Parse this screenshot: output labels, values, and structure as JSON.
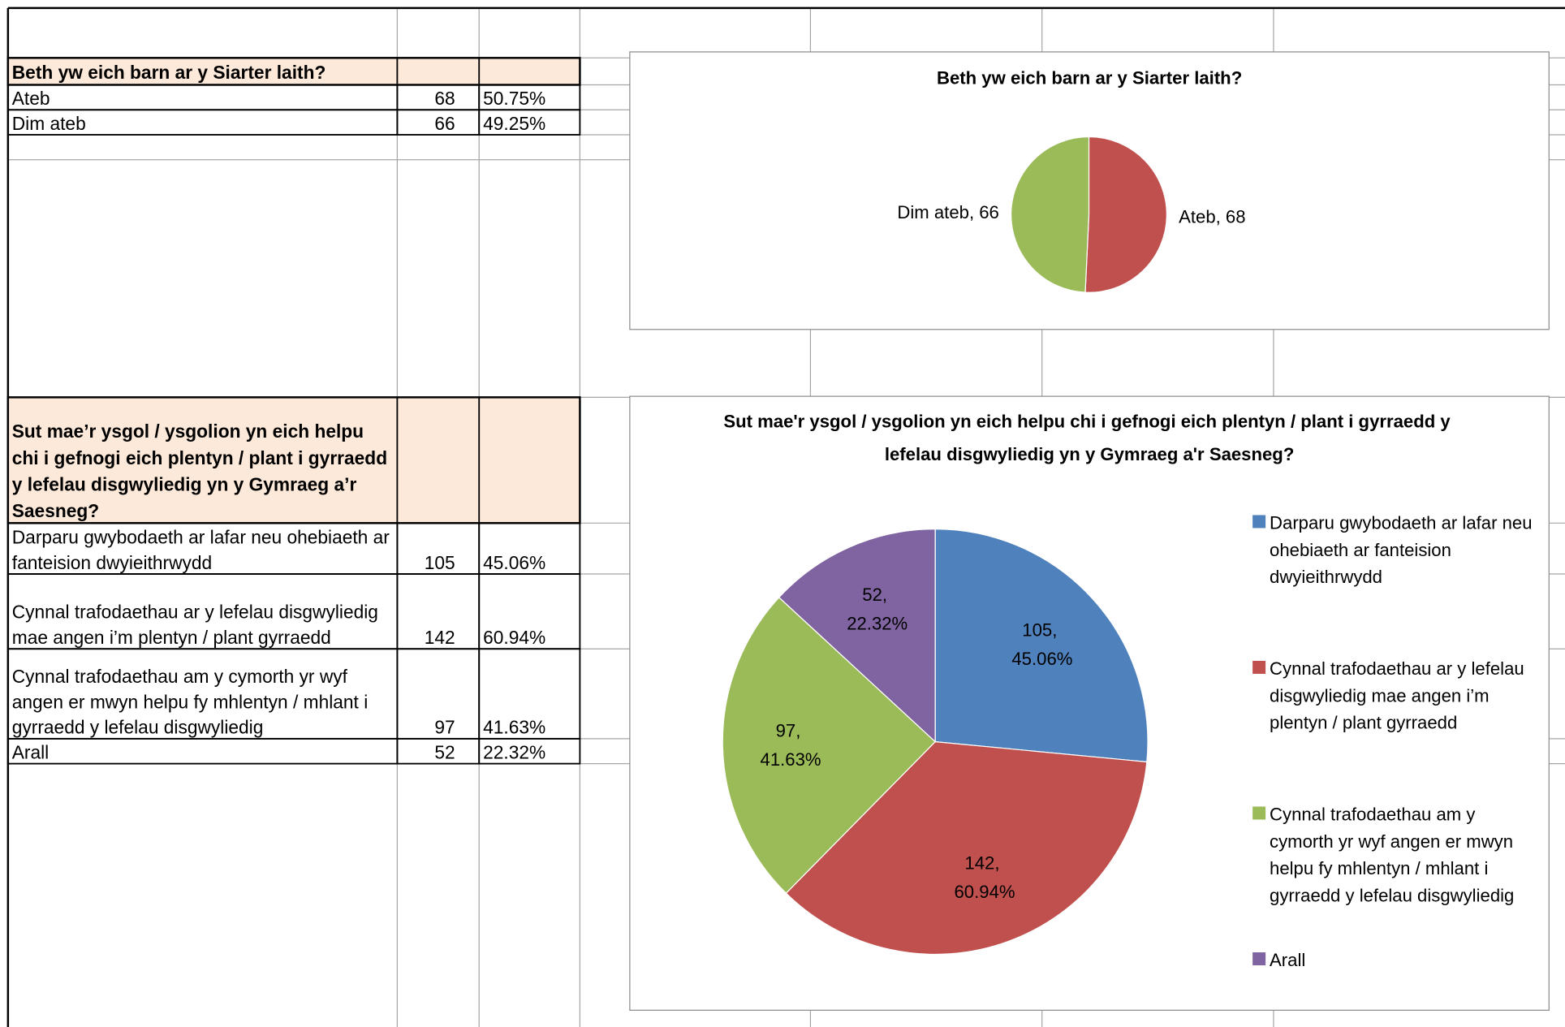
{
  "table": {
    "sections": [
      {
        "header": "Beth yw eich barn ar y Siarter laith?",
        "rows": [
          [
            "Ateb",
            68,
            "50.75%"
          ],
          [
            "Dim ateb",
            66,
            "49.25%"
          ]
        ]
      },
      {
        "header": "Sut mae’r ysgol / ysgolion yn eich helpu chi i gefnogi eich plentyn / plant i gyrraedd y lefelau disgwyliedig yn y Gymraeg a’r Saesneg?",
        "rows": [
          [
            "Darparu gwybodaeth ar lafar neu ohebiaeth ar fanteision dwyieithrwydd",
            105,
            "45.06%"
          ],
          [
            "Cynnal trafodaethau ar y lefelau disgwyliedig mae angen i’m plentyn / plant gyrraedd",
            142,
            "60.94%"
          ],
          [
            "Cynnal trafodaethau am y cymorth yr wyf angen er mwyn helpu fy mhlentyn / mhlant i gyrraedd y lefelau disgwyliedig",
            97,
            "41.63%"
          ],
          [
            "Arall",
            52,
            "22.32%"
          ]
        ]
      }
    ]
  },
  "chart_data": [
    {
      "type": "pie",
      "title": "Beth yw eich barn ar y Siarter laith?",
      "values": [
        68,
        66
      ],
      "value_labels": [
        "Ateb, 68",
        "Dim ateb, 66"
      ],
      "colors": [
        "#c0504d",
        "#9bbb59"
      ],
      "legend": false
    },
    {
      "type": "pie",
      "title": "Sut mae'r ysgol / ysgolion yn eich helpu chi i gefnogi eich plentyn / plant i gyrraedd y lefelau disgwyliedig yn y Gymraeg a'r Saesneg?",
      "categories": [
        "Darparu gwybodaeth ar lafar neu ohebiaeth ar fanteision dwyieithrwydd",
        "Cynnal trafodaethau ar y lefelau disgwyliedig mae angen i’m plentyn / plant gyrraedd",
        "Cynnal trafodaethau am y cymorth yr wyf angen er mwyn helpu fy mhlentyn / mhlant i gyrraedd y lefelau disgwyliedig",
        "Arall"
      ],
      "values": [
        105,
        142,
        97,
        52
      ],
      "value_labels": [
        "105, 45.06%",
        "142, 60.94%",
        "97, 41.63%",
        "52, 22.32%"
      ],
      "colors": [
        "#4f81bd",
        "#c0504d",
        "#9bbb59",
        "#8064a2"
      ],
      "legend": "right"
    }
  ]
}
